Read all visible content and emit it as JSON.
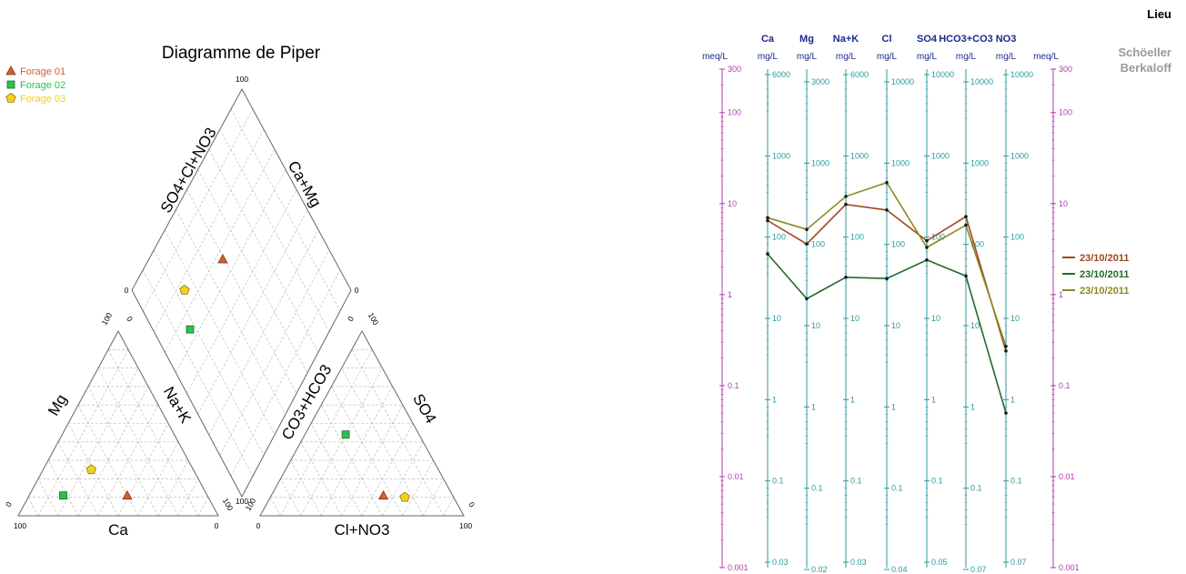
{
  "chart_data": [
    {
      "type": "scatter",
      "title": "Diagramme de Piper",
      "legend": [
        {
          "name": "Forage 01",
          "shape": "triangle",
          "color": "#d4602a"
        },
        {
          "name": "Forage 02",
          "shape": "square",
          "color": "#2fbf4f"
        },
        {
          "name": "Forage 03",
          "shape": "pentagon",
          "color": "#f2d21a"
        }
      ],
      "labels": {
        "ca_mg": "Ca+Mg",
        "so4_cl_no3": "SO4+Cl+NO3",
        "mg": "Mg",
        "na_k": "Na+K",
        "ca": "Ca",
        "co3_hco3": "CO3+HCO3",
        "so4": "SO4",
        "cl_no3": "Cl+NO3"
      },
      "tick_100": "100",
      "tick_0": "0",
      "cations_percent": [
        {
          "sample": "Forage 01",
          "ca": 40,
          "mg": 11,
          "na_k": 49
        },
        {
          "sample": "Forage 02",
          "ca": 72,
          "mg": 11,
          "na_k": 17
        },
        {
          "sample": "Forage 03",
          "ca": 51,
          "mg": 25,
          "na_k": 24
        }
      ],
      "anions_percent": [
        {
          "sample": "Forage 01",
          "cl_no3": 55,
          "so4": 11,
          "co3_hco3": 34
        },
        {
          "sample": "Forage 02",
          "cl_no3": 20,
          "so4": 44,
          "co3_hco3": 36
        },
        {
          "sample": "Forage 03",
          "cl_no3": 66,
          "so4": 10,
          "co3_hco3": 24
        }
      ]
    },
    {
      "type": "line",
      "title": "Schöeller Berkaloff",
      "header_right": "Lieu",
      "subtitle_line1": "Schöeller",
      "subtitle_line2": "Berkaloff",
      "meq_label": "meq/L",
      "meq_ticks": [
        "300",
        "100",
        "10",
        "1",
        "0.1",
        "0.01",
        "0.001"
      ],
      "meq_range": [
        0.001,
        300
      ],
      "columns": [
        {
          "name": "Ca",
          "unit": "mg/L",
          "ticks": [
            "6000",
            "1000",
            "100",
            "10",
            "1",
            "0.1",
            "0.03"
          ]
        },
        {
          "name": "Mg",
          "unit": "mg/L",
          "ticks": [
            "3000",
            "1000",
            "100",
            "10",
            "1",
            "0.1",
            "0.02"
          ]
        },
        {
          "name": "Na+K",
          "unit": "mg/L",
          "ticks": [
            "6000",
            "1000",
            "100",
            "10",
            "1",
            "0.1",
            "0.03"
          ]
        },
        {
          "name": "Cl",
          "unit": "mg/L",
          "ticks": [
            "10000",
            "1000",
            "100",
            "10",
            "1",
            "0.1",
            "0.04"
          ]
        },
        {
          "name": "SO4",
          "unit": "mg/L",
          "ticks": [
            "10000",
            "1000",
            "100",
            "10",
            "1",
            "0.1",
            "0.05"
          ]
        },
        {
          "name": "HCO3+CO3",
          "unit": "mg/L",
          "ticks": [
            "10000",
            "1000",
            "100",
            "10",
            "1",
            "0.1",
            "0.07"
          ]
        },
        {
          "name": "NO3",
          "unit": "mg/L",
          "ticks": [
            "10000",
            "1000",
            "100",
            "10",
            "1",
            "0.1",
            "0.07"
          ]
        }
      ],
      "series": [
        {
          "name": "23/10/2011",
          "color": "#a0461e",
          "values_meq": [
            6.5,
            3.6,
            9.8,
            8.5,
            3.9,
            7.2,
            0.24
          ]
        },
        {
          "name": "23/10/2011",
          "color": "#1f6b27",
          "values_meq": [
            2.8,
            0.9,
            1.55,
            1.5,
            2.4,
            1.6,
            0.05
          ]
        },
        {
          "name": "23/10/2011",
          "color": "#8a8a22",
          "values_meq": [
            7.0,
            5.2,
            12.0,
            17.0,
            3.3,
            5.8,
            0.27
          ]
        }
      ]
    }
  ]
}
